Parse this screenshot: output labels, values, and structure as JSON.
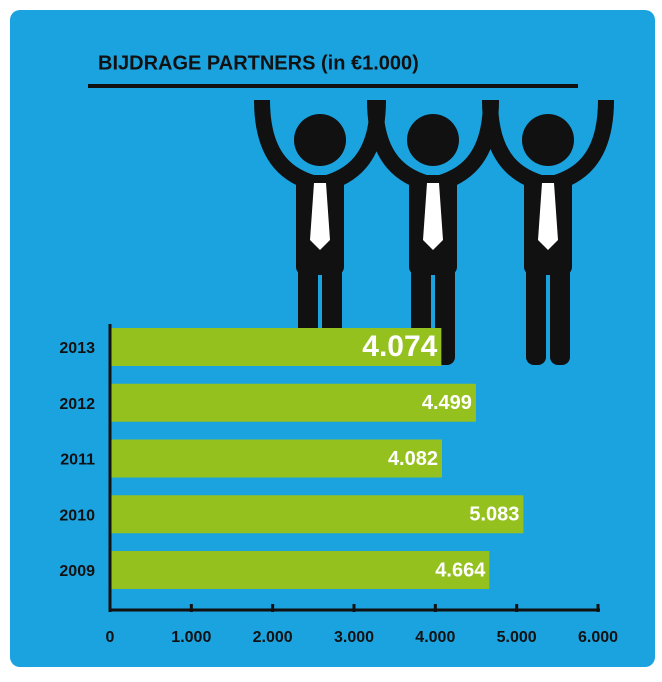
{
  "chart_data": {
    "type": "hbar",
    "title": "BIJDRAGE PARTNERS (in €1.000)",
    "categories": [
      "2013",
      "2012",
      "2011",
      "2010",
      "2009"
    ],
    "values": [
      4074,
      4499,
      4082,
      5083,
      4664
    ],
    "value_labels": [
      "4.074",
      "4.499",
      "4.082",
      "5.083",
      "4.664"
    ],
    "color": "#95c11f",
    "xlim": [
      0,
      6000
    ],
    "xticks": [
      0,
      {
        "value": 1000,
        "label": "1.000"
      },
      {
        "value": 2000,
        "label": "2.000"
      },
      {
        "value": 3000,
        "label": "3.000"
      },
      {
        "value": 4000,
        "label": "4.000"
      },
      {
        "value": 5000,
        "label": "5.000"
      },
      {
        "value": 6000,
        "label": "6.000"
      }
    ]
  }
}
